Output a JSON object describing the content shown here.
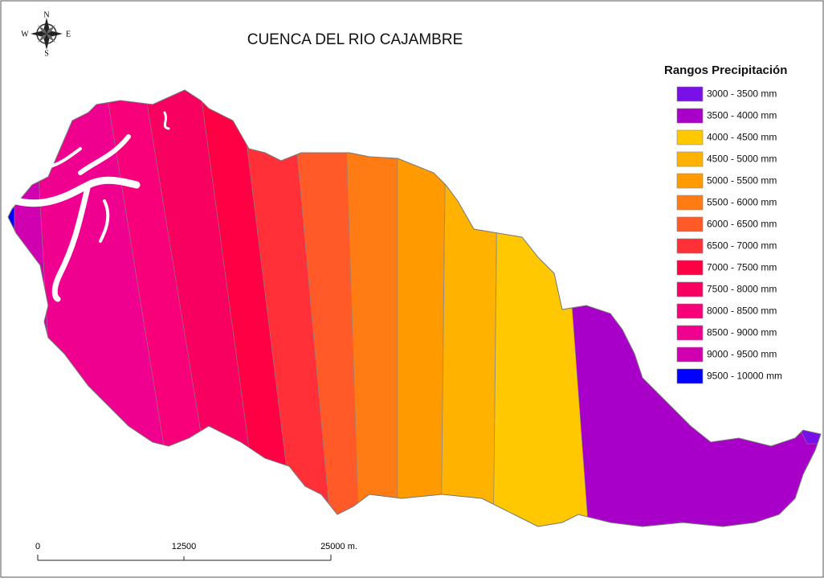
{
  "title": "CUENCA DEL RIO CAJAMBRE",
  "compass": {
    "n": "N",
    "s": "S",
    "e": "E",
    "w": "W"
  },
  "legend": {
    "title": "Rangos Precipitación",
    "items": [
      {
        "label": "3000 - 3500 mm",
        "color": "#7a10e8"
      },
      {
        "label": "3500 - 4000 mm",
        "color": "#a800c8"
      },
      {
        "label": "4000 - 4500 mm",
        "color": "#ffc800"
      },
      {
        "label": "4500 - 5000 mm",
        "color": "#ffb300"
      },
      {
        "label": "5000 - 5500 mm",
        "color": "#ff9a00"
      },
      {
        "label": "5500 - 6000 mm",
        "color": "#ff7b14"
      },
      {
        "label": "6000 - 6500 mm",
        "color": "#ff5a28"
      },
      {
        "label": "6500 - 7000 mm",
        "color": "#ff3038"
      },
      {
        "label": "7000 - 7500 mm",
        "color": "#ff0044"
      },
      {
        "label": "7500 - 8000 mm",
        "color": "#f80060"
      },
      {
        "label": "8000 - 8500 mm",
        "color": "#f8007a"
      },
      {
        "label": "8500 - 9000 mm",
        "color": "#f0008e"
      },
      {
        "label": "9000 - 9500 mm",
        "color": "#d000b0"
      },
      {
        "label": "9500 - 10000 mm",
        "color": "#0000ff"
      }
    ]
  },
  "scale_bar": {
    "labels": [
      "0",
      "12500",
      "25000 m."
    ]
  }
}
